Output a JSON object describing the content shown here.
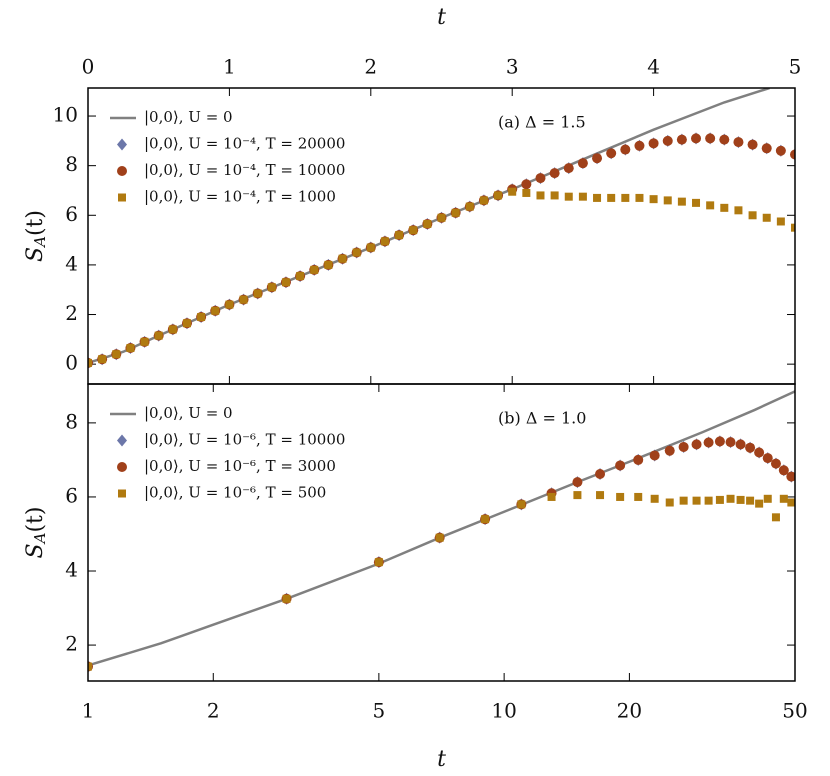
{
  "chart_data": [
    {
      "type": "scatter",
      "panel_axis": "top",
      "x_label": "t",
      "y_label": {
        "main": "S",
        "sub": "A",
        "arg": "(t)"
      },
      "annotation": "(a)   Δ = 1.5",
      "legend": "upper left",
      "xlim": [
        0,
        5
      ],
      "xticks": [
        0,
        1,
        2,
        3,
        4,
        5
      ],
      "ylim": [
        -0.8,
        11.13
      ],
      "yticks": [
        0,
        2,
        4,
        6,
        8,
        10
      ],
      "series": [
        {
          "name": "|0,0⟩,  U = 0",
          "color": "#808080",
          "marker": "line",
          "x": [
            0,
            0.25,
            0.5,
            1,
            1.5,
            2,
            2.5,
            3,
            3.5,
            4,
            4.5,
            4.82
          ],
          "values": [
            0.05,
            0.5,
            1.15,
            2.4,
            3.55,
            4.7,
            5.9,
            7.05,
            8.25,
            9.45,
            10.55,
            11.13
          ]
        },
        {
          "name": "|0,0⟩,  U = 10⁻⁴,  T = 20000",
          "color": "#3b4a8c",
          "marker": "diamond",
          "x": [
            0,
            0.1,
            0.2,
            0.3,
            0.4,
            0.5,
            0.6,
            0.7,
            0.8,
            0.9,
            1,
            1.1,
            1.2,
            1.3,
            1.4,
            1.5,
            1.6,
            1.7,
            1.8,
            1.9,
            2,
            2.1,
            2.2,
            2.3,
            2.4,
            2.5,
            2.6,
            2.7,
            2.8,
            2.9,
            3,
            3.1,
            3.2,
            3.3,
            3.4,
            3.5,
            3.6,
            3.7,
            3.8,
            3.9,
            4,
            4.1,
            4.2,
            4.3,
            4.4,
            4.5,
            4.6,
            4.7,
            4.8,
            4.9,
            5
          ],
          "values": [
            0.05,
            0.2,
            0.4,
            0.65,
            0.9,
            1.15,
            1.4,
            1.65,
            1.9,
            2.15,
            2.4,
            2.6,
            2.85,
            3.1,
            3.3,
            3.55,
            3.8,
            4,
            4.25,
            4.5,
            4.7,
            4.95,
            5.2,
            5.4,
            5.65,
            5.9,
            6.1,
            6.35,
            6.6,
            6.8,
            7.05,
            7.25,
            7.5,
            7.7,
            7.9,
            8.1,
            8.3,
            8.5,
            8.65,
            8.8,
            8.9,
            9,
            9.05,
            9.1,
            9.1,
            9.05,
            8.95,
            8.85,
            8.7,
            8.6,
            8.45
          ]
        },
        {
          "name": "|0,0⟩,  U = 10⁻⁴,  T = 10000",
          "color": "#a0401a",
          "marker": "circle",
          "x": [
            0,
            0.1,
            0.2,
            0.3,
            0.4,
            0.5,
            0.6,
            0.7,
            0.8,
            0.9,
            1,
            1.1,
            1.2,
            1.3,
            1.4,
            1.5,
            1.6,
            1.7,
            1.8,
            1.9,
            2,
            2.1,
            2.2,
            2.3,
            2.4,
            2.5,
            2.6,
            2.7,
            2.8,
            2.9,
            3,
            3.1,
            3.2,
            3.3,
            3.4,
            3.5,
            3.6,
            3.7,
            3.8,
            3.9,
            4,
            4.1,
            4.2,
            4.3,
            4.4,
            4.5,
            4.6,
            4.7,
            4.8,
            4.9,
            5
          ],
          "values": [
            0.05,
            0.2,
            0.4,
            0.65,
            0.9,
            1.15,
            1.4,
            1.65,
            1.9,
            2.15,
            2.4,
            2.6,
            2.85,
            3.1,
            3.3,
            3.55,
            3.8,
            4,
            4.25,
            4.5,
            4.7,
            4.95,
            5.2,
            5.4,
            5.65,
            5.9,
            6.1,
            6.35,
            6.6,
            6.8,
            7.05,
            7.25,
            7.5,
            7.7,
            7.9,
            8.1,
            8.3,
            8.5,
            8.65,
            8.8,
            8.9,
            9,
            9.05,
            9.1,
            9.1,
            9.05,
            8.95,
            8.85,
            8.7,
            8.6,
            8.45
          ]
        },
        {
          "name": "|0,0⟩,  U = 10⁻⁴,  T = 1000",
          "color": "#b07a10",
          "marker": "square",
          "x": [
            0,
            0.1,
            0.2,
            0.3,
            0.4,
            0.5,
            0.6,
            0.7,
            0.8,
            0.9,
            1,
            1.1,
            1.2,
            1.3,
            1.4,
            1.5,
            1.6,
            1.7,
            1.8,
            1.9,
            2,
            2.1,
            2.2,
            2.3,
            2.4,
            2.5,
            2.6,
            2.7,
            2.8,
            2.9,
            3,
            3.1,
            3.2,
            3.3,
            3.4,
            3.5,
            3.6,
            3.7,
            3.8,
            3.9,
            4,
            4.1,
            4.2,
            4.3,
            4.4,
            4.5,
            4.6,
            4.7,
            4.8,
            4.9,
            5
          ],
          "values": [
            0.05,
            0.2,
            0.4,
            0.65,
            0.9,
            1.15,
            1.4,
            1.65,
            1.9,
            2.15,
            2.4,
            2.6,
            2.85,
            3.1,
            3.3,
            3.55,
            3.8,
            4,
            4.25,
            4.5,
            4.7,
            4.95,
            5.2,
            5.4,
            5.65,
            5.9,
            6.1,
            6.35,
            6.6,
            6.8,
            6.95,
            6.9,
            6.8,
            6.8,
            6.75,
            6.75,
            6.7,
            6.7,
            6.7,
            6.7,
            6.65,
            6.6,
            6.55,
            6.5,
            6.4,
            6.3,
            6.2,
            6,
            5.9,
            5.75,
            5.5
          ]
        }
      ]
    },
    {
      "type": "scatter",
      "panel_axis": "bottom",
      "x_label": "t",
      "y_label": {
        "main": "S",
        "sub": "A",
        "arg": "(t)"
      },
      "annotation": "(b)   Δ = 1.0",
      "legend": "upper left",
      "xscale": "log",
      "xlim": [
        1,
        50
      ],
      "xticks": [
        1,
        2,
        5,
        10,
        20,
        50
      ],
      "ylim": [
        1.03,
        9.05
      ],
      "yticks": [
        2,
        4,
        6,
        8
      ],
      "series": [
        {
          "name": "|0,0⟩,  U = 0",
          "color": "#808080",
          "marker": "line",
          "x": [
            1,
            1.5,
            2,
            3,
            5,
            7,
            10,
            15,
            20,
            30,
            40,
            50
          ],
          "values": [
            1.45,
            2.05,
            2.55,
            3.25,
            4.2,
            4.9,
            5.6,
            6.4,
            6.95,
            7.75,
            8.35,
            8.85
          ]
        },
        {
          "name": "|0,0⟩,  U = 10⁻⁶,  T = 10000",
          "color": "#3b4a8c",
          "marker": "diamond",
          "x": [
            1,
            3,
            5,
            7,
            9,
            11,
            13,
            15,
            17,
            19,
            21,
            23,
            25,
            27,
            29,
            31,
            33,
            35,
            37,
            39,
            41,
            43,
            45,
            47,
            49
          ],
          "values": [
            1.42,
            3.25,
            4.24,
            4.9,
            5.4,
            5.8,
            6.1,
            6.4,
            6.62,
            6.85,
            7,
            7.12,
            7.25,
            7.35,
            7.42,
            7.47,
            7.5,
            7.48,
            7.42,
            7.33,
            7.2,
            7.05,
            6.9,
            6.72,
            6.55
          ]
        },
        {
          "name": "|0,0⟩,  U = 10⁻⁶,  T = 3000",
          "color": "#a0401a",
          "marker": "circle",
          "x": [
            1,
            3,
            5,
            7,
            9,
            11,
            13,
            15,
            17,
            19,
            21,
            23,
            25,
            27,
            29,
            31,
            33,
            35,
            37,
            39,
            41,
            43,
            45,
            47,
            49
          ],
          "values": [
            1.42,
            3.25,
            4.24,
            4.9,
            5.4,
            5.8,
            6.1,
            6.4,
            6.62,
            6.85,
            7,
            7.12,
            7.25,
            7.35,
            7.42,
            7.47,
            7.5,
            7.48,
            7.42,
            7.33,
            7.2,
            7.05,
            6.9,
            6.72,
            6.55
          ]
        },
        {
          "name": "|0,0⟩,  U = 10⁻⁶,  T = 500",
          "color": "#b07a10",
          "marker": "square",
          "x": [
            1,
            3,
            5,
            7,
            9,
            11,
            13,
            15,
            17,
            19,
            21,
            23,
            25,
            27,
            29,
            31,
            33,
            35,
            37,
            39,
            41,
            43,
            45,
            47,
            49
          ],
          "values": [
            1.42,
            3.25,
            4.24,
            4.9,
            5.4,
            5.8,
            6,
            6.05,
            6.05,
            6,
            6,
            5.95,
            5.85,
            5.9,
            5.9,
            5.9,
            5.92,
            5.95,
            5.92,
            5.9,
            5.82,
            5.95,
            5.45,
            5.95,
            5.85
          ]
        }
      ]
    }
  ]
}
